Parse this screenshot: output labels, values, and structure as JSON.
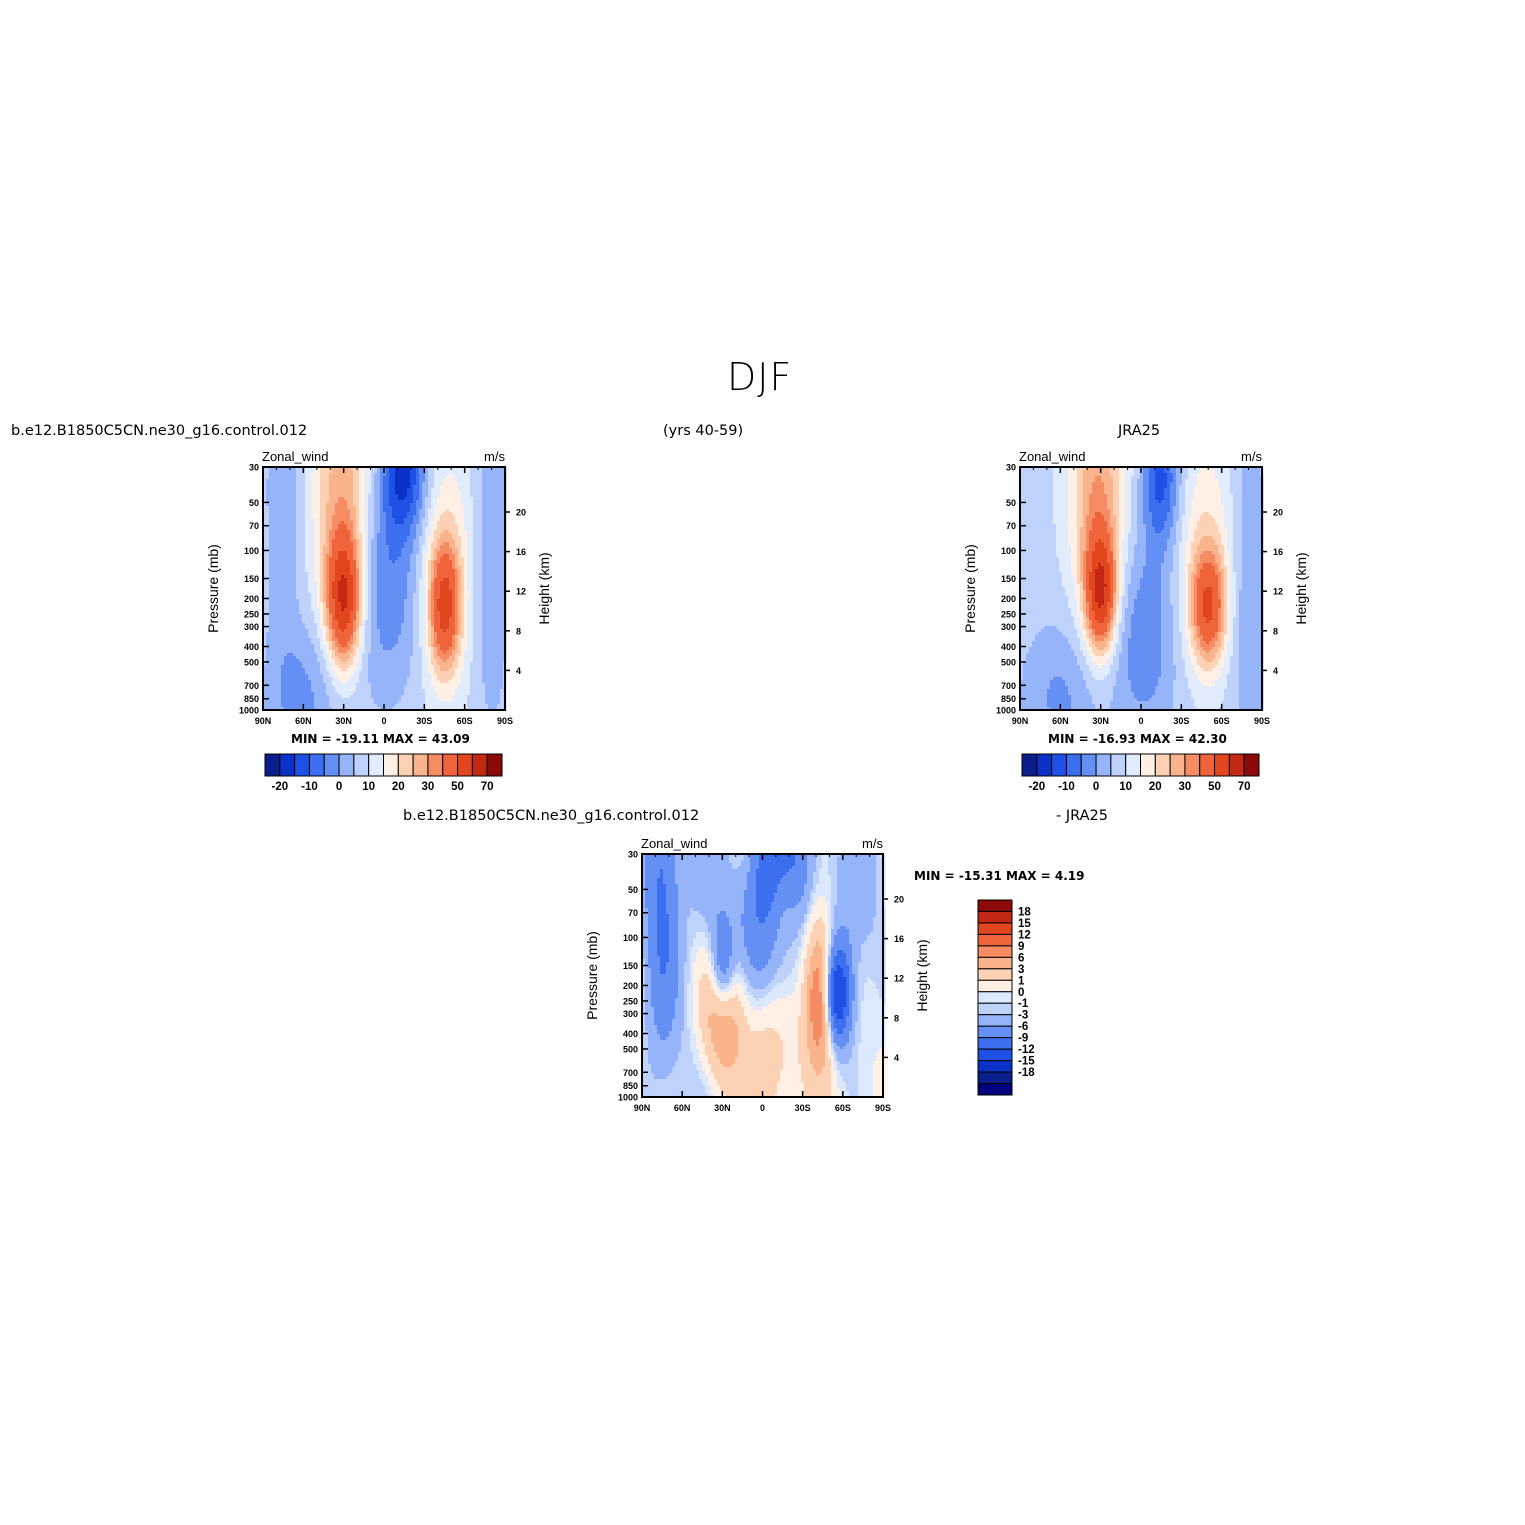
{
  "title": "DJF",
  "header": {
    "left_label": "b.e12.B1850C5CN.ne30_g16.control.012",
    "center_label": "(yrs 40-59)",
    "right_label": "JRA25",
    "diff_left_label": "b.e12.B1850C5CN.ne30_g16.control.012",
    "diff_right_label": "- JRA25"
  },
  "chart_data": [
    {
      "type": "heatmap",
      "panel": "model",
      "field_label": "Zonal_wind",
      "units": "m/s",
      "xlabel": "",
      "ylabel": "Pressure (mb)",
      "ylabel_right": "Height (km)",
      "x_ticks": [
        "90N",
        "60N",
        "30N",
        "0",
        "30S",
        "60S",
        "90S"
      ],
      "y_ticks": [
        "30",
        "50",
        "70",
        "100",
        "150",
        "200",
        "250",
        "300",
        "400",
        "500",
        "700",
        "850",
        "1000"
      ],
      "y_ticks_right": [
        "20",
        "16",
        "12",
        "8",
        "4"
      ],
      "stats": "MIN = -19.11 MAX = 43.09",
      "colorbar": {
        "orientation": "horizontal",
        "tick_labels": [
          "-20",
          "-10",
          "0",
          "10",
          "20",
          "30",
          "50",
          "70"
        ]
      },
      "jets": [
        {
          "lat_deg": 30,
          "p_mb": 200,
          "value": 43.09
        },
        {
          "lat_deg": -45,
          "p_mb": 220,
          "value": 35
        },
        {
          "lat_deg": -15,
          "p_mb": 30,
          "value": -19.11
        }
      ]
    },
    {
      "type": "heatmap",
      "panel": "obs",
      "field_label": "Zonal_wind",
      "units": "m/s",
      "xlabel": "",
      "ylabel": "Pressure (mb)",
      "ylabel_right": "Height (km)",
      "x_ticks": [
        "90N",
        "60N",
        "30N",
        "0",
        "30S",
        "60S",
        "90S"
      ],
      "y_ticks": [
        "30",
        "50",
        "70",
        "100",
        "150",
        "200",
        "250",
        "300",
        "400",
        "500",
        "700",
        "850",
        "1000"
      ],
      "y_ticks_right": [
        "20",
        "16",
        "12",
        "8",
        "4"
      ],
      "stats": "MIN = -16.93 MAX = 42.30",
      "colorbar": {
        "orientation": "horizontal",
        "tick_labels": [
          "-20",
          "-10",
          "0",
          "10",
          "20",
          "30",
          "50",
          "70"
        ]
      },
      "jets": [
        {
          "lat_deg": 30,
          "p_mb": 200,
          "value": 42.3
        },
        {
          "lat_deg": -50,
          "p_mb": 250,
          "value": 33
        },
        {
          "lat_deg": -15,
          "p_mb": 35,
          "value": -16.93
        }
      ]
    },
    {
      "type": "heatmap",
      "panel": "difference",
      "field_label": "Zonal_wind",
      "units": "m/s",
      "xlabel": "",
      "ylabel": "Pressure (mb)",
      "ylabel_right": "Height (km)",
      "x_ticks": [
        "90N",
        "60N",
        "30N",
        "0",
        "30S",
        "60S",
        "90S"
      ],
      "y_ticks": [
        "30",
        "50",
        "70",
        "100",
        "150",
        "200",
        "250",
        "300",
        "400",
        "500",
        "700",
        "850",
        "1000"
      ],
      "y_ticks_right": [
        "20",
        "16",
        "12",
        "8",
        "4"
      ],
      "stats": "MIN = -15.31 MAX = 4.19",
      "colorbar": {
        "orientation": "vertical",
        "tick_labels": [
          "18",
          "15",
          "12",
          "9",
          "6",
          "3",
          "1",
          "0",
          "-1",
          "-3",
          "-6",
          "-9",
          "-12",
          "-15",
          "-18"
        ]
      }
    }
  ],
  "colors": {
    "diverging": [
      "#0a1e8c",
      "#0a32c8",
      "#1e50e6",
      "#3c6ef0",
      "#6490f5",
      "#96b4fa",
      "#bed2fc",
      "#e1ecfe",
      "#fff0e6",
      "#fdd2b4",
      "#fab48c",
      "#f58c64",
      "#f0643c",
      "#e1461e",
      "#c32814",
      "#8c0a0a"
    ],
    "diverging_diff": [
      "#00007f",
      "#0a1e8c",
      "#0a32c8",
      "#1e50e6",
      "#3c6ef0",
      "#6490f5",
      "#96b4fa",
      "#bed2fc",
      "#dce9fd",
      "#fff0e6",
      "#fdd2b4",
      "#fab48c",
      "#f58c64",
      "#f0643c",
      "#e1461e",
      "#c32814",
      "#8c0a0a"
    ]
  }
}
